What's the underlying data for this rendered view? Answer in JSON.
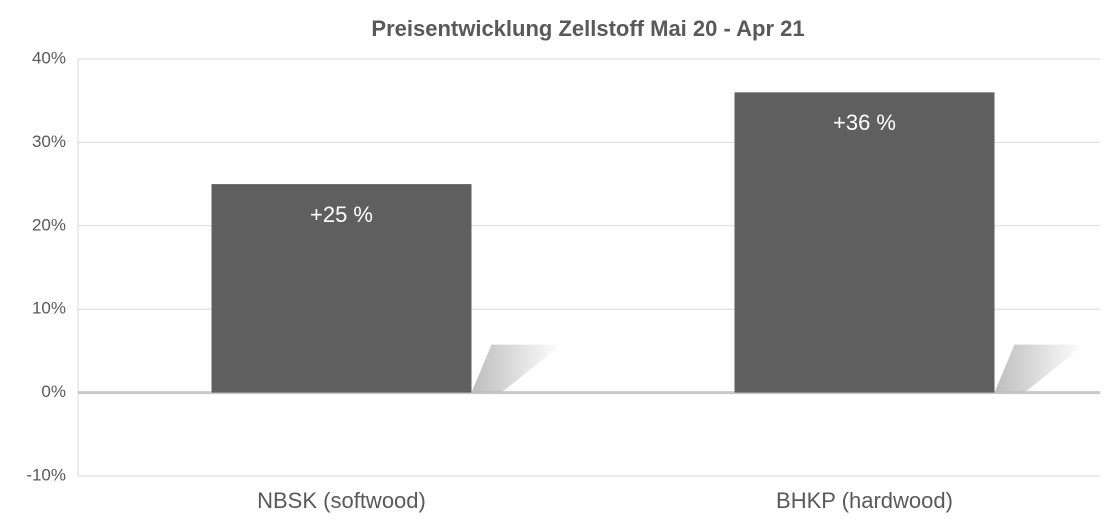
{
  "chart_data": {
    "type": "bar",
    "title": "Preisentwicklung Zellstoff Mai 20 - Apr 21",
    "categories": [
      "NBSK (softwood)",
      "BHKP (hardwood)"
    ],
    "values": [
      25,
      36
    ],
    "value_labels": [
      "+25 %",
      "+36 %"
    ],
    "color": "#5f5f5f",
    "ylim": [
      -10,
      40
    ],
    "yticks": [
      {
        "value": -10,
        "label": "-10%"
      },
      {
        "value": 0,
        "label": "0%"
      },
      {
        "value": 10,
        "label": "10%"
      },
      {
        "value": 20,
        "label": "20%"
      },
      {
        "value": 30,
        "label": "30%"
      },
      {
        "value": 40,
        "label": "40%"
      }
    ],
    "grid": true
  }
}
